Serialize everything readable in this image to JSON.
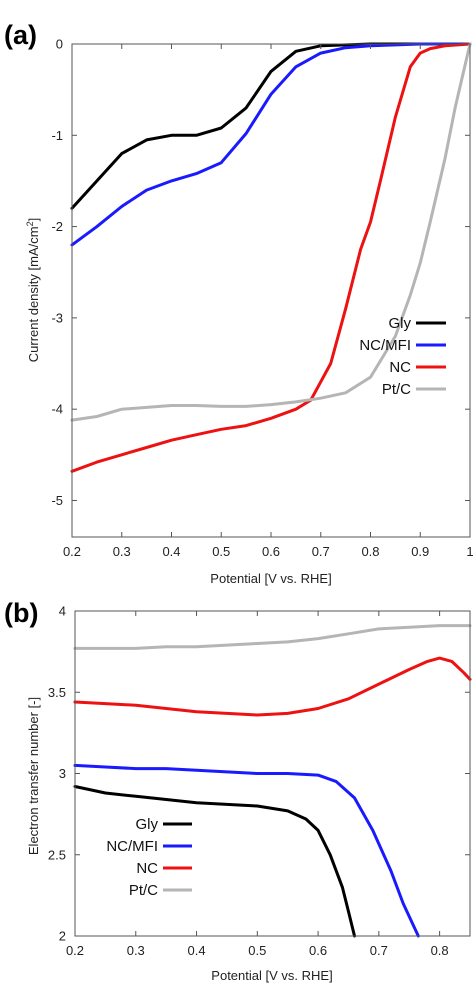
{
  "chart_data": [
    {
      "type": "line",
      "panel_label": "(a)",
      "xlabel": "Potential [V vs. RHE]",
      "ylabel": "Current density [mA/cm",
      "ylabel_sup": "2",
      "ylabel_end": "]",
      "xlim": [
        0.2,
        1.0
      ],
      "ylim": [
        -5.4,
        0
      ],
      "x_ticks": [
        "0.2",
        "0.3",
        "0.4",
        "0.5",
        "0.6",
        "0.7",
        "0.8",
        "0.9",
        "1"
      ],
      "y_ticks": [
        "0",
        "-1",
        "-2",
        "-3",
        "-4",
        "-5"
      ],
      "legend_position": "bottom-right",
      "series": [
        {
          "name": "Gly",
          "color": "#000000",
          "x": [
            0.2,
            0.25,
            0.3,
            0.35,
            0.4,
            0.45,
            0.5,
            0.55,
            0.6,
            0.65,
            0.7,
            0.75,
            0.8,
            0.85,
            0.9,
            0.95,
            1.0
          ],
          "y": [
            -1.8,
            -1.5,
            -1.2,
            -1.05,
            -1.0,
            -1.0,
            -0.92,
            -0.7,
            -0.3,
            -0.08,
            -0.02,
            -0.01,
            0,
            0,
            0,
            0,
            0
          ]
        },
        {
          "name": "NC/MFI",
          "color": "#1a1aff",
          "x": [
            0.2,
            0.25,
            0.3,
            0.35,
            0.4,
            0.45,
            0.5,
            0.55,
            0.6,
            0.65,
            0.7,
            0.75,
            0.8,
            0.85,
            0.9,
            0.95,
            1.0
          ],
          "y": [
            -2.2,
            -2.0,
            -1.78,
            -1.6,
            -1.5,
            -1.42,
            -1.3,
            -0.98,
            -0.55,
            -0.25,
            -0.1,
            -0.04,
            -0.02,
            -0.01,
            0,
            0,
            0
          ]
        },
        {
          "name": "NC",
          "color": "#ee1111",
          "x": [
            0.2,
            0.25,
            0.3,
            0.35,
            0.4,
            0.45,
            0.5,
            0.55,
            0.6,
            0.65,
            0.68,
            0.72,
            0.75,
            0.78,
            0.8,
            0.82,
            0.85,
            0.88,
            0.9,
            0.92,
            0.95,
            1.0
          ],
          "y": [
            -4.68,
            -4.58,
            -4.5,
            -4.42,
            -4.34,
            -4.28,
            -4.22,
            -4.18,
            -4.1,
            -4.0,
            -3.9,
            -3.5,
            -2.9,
            -2.25,
            -1.95,
            -1.5,
            -0.8,
            -0.25,
            -0.1,
            -0.05,
            -0.02,
            0
          ]
        },
        {
          "name": "Pt/C",
          "color": "#b5b5b5",
          "x": [
            0.2,
            0.25,
            0.3,
            0.35,
            0.4,
            0.45,
            0.5,
            0.55,
            0.6,
            0.65,
            0.7,
            0.75,
            0.8,
            0.85,
            0.88,
            0.9,
            0.92,
            0.95,
            0.97,
            1.0
          ],
          "y": [
            -4.12,
            -4.08,
            -4.0,
            -3.98,
            -3.96,
            -3.96,
            -3.97,
            -3.97,
            -3.95,
            -3.92,
            -3.88,
            -3.82,
            -3.65,
            -3.2,
            -2.75,
            -2.4,
            -1.95,
            -1.25,
            -0.7,
            0
          ]
        }
      ]
    },
    {
      "type": "line",
      "panel_label": "(b)",
      "xlabel": "Potential [V vs. RHE]",
      "ylabel": "Electron transfer number [-]",
      "xlim": [
        0.2,
        0.85
      ],
      "ylim": [
        2,
        4
      ],
      "x_ticks": [
        "0.2",
        "0.3",
        "0.4",
        "0.5",
        "0.6",
        "0.7",
        "0.8"
      ],
      "y_ticks": [
        "2",
        "2.5",
        "3",
        "3.5",
        "4"
      ],
      "legend_position": "bottom-left",
      "series": [
        {
          "name": "Gly",
          "color": "#000000",
          "x": [
            0.2,
            0.25,
            0.3,
            0.35,
            0.4,
            0.45,
            0.5,
            0.55,
            0.58,
            0.6,
            0.62,
            0.64,
            0.65,
            0.66
          ],
          "y": [
            2.92,
            2.88,
            2.86,
            2.84,
            2.82,
            2.81,
            2.8,
            2.77,
            2.72,
            2.65,
            2.5,
            2.3,
            2.15,
            2.0
          ]
        },
        {
          "name": "NC/MFI",
          "color": "#1a1aff",
          "x": [
            0.2,
            0.25,
            0.3,
            0.35,
            0.4,
            0.45,
            0.5,
            0.55,
            0.6,
            0.63,
            0.66,
            0.69,
            0.72,
            0.74,
            0.765
          ],
          "y": [
            3.05,
            3.04,
            3.03,
            3.03,
            3.02,
            3.01,
            3.0,
            3.0,
            2.99,
            2.95,
            2.85,
            2.65,
            2.4,
            2.2,
            2.0
          ]
        },
        {
          "name": "NC",
          "color": "#ee1111",
          "x": [
            0.2,
            0.25,
            0.3,
            0.35,
            0.4,
            0.45,
            0.5,
            0.55,
            0.6,
            0.65,
            0.7,
            0.75,
            0.78,
            0.8,
            0.82,
            0.84,
            0.85
          ],
          "y": [
            3.44,
            3.43,
            3.42,
            3.4,
            3.38,
            3.37,
            3.36,
            3.37,
            3.4,
            3.46,
            3.55,
            3.64,
            3.69,
            3.71,
            3.69,
            3.62,
            3.58
          ]
        },
        {
          "name": "Pt/C",
          "color": "#b5b5b5",
          "x": [
            0.2,
            0.25,
            0.3,
            0.35,
            0.4,
            0.45,
            0.5,
            0.55,
            0.6,
            0.65,
            0.7,
            0.75,
            0.8,
            0.85
          ],
          "y": [
            3.77,
            3.77,
            3.77,
            3.78,
            3.78,
            3.79,
            3.8,
            3.81,
            3.83,
            3.86,
            3.89,
            3.9,
            3.91,
            3.91
          ]
        }
      ]
    }
  ]
}
